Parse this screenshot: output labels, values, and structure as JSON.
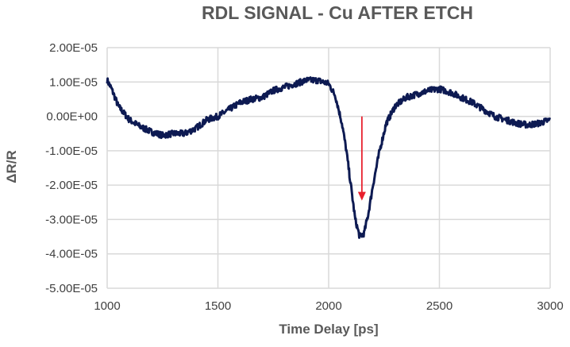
{
  "chart_data": {
    "type": "line",
    "title": "RDL SIGNAL - Cu AFTER ETCH",
    "xlabel": "Time Delay [ps]",
    "ylabel": "ΔR/R",
    "xlim": [
      1000,
      3000
    ],
    "ylim": [
      -5e-05,
      2e-05
    ],
    "xticks": [
      1000,
      1500,
      2000,
      2500,
      3000
    ],
    "xtick_labels": [
      "1000",
      "1500",
      "2000",
      "2500",
      "3000"
    ],
    "yticks": [
      2e-05,
      1e-05,
      0,
      -1e-05,
      -2e-05,
      -3e-05,
      -4e-05,
      -5e-05
    ],
    "ytick_labels": [
      "2.00E-05",
      "1.00E-05",
      "0.00E+00",
      "-1.00E-05",
      "-2.00E-05",
      "-3.00E-05",
      "-4.00E-05",
      "-5.00E-05"
    ],
    "grid": true,
    "legend": "none",
    "series": [
      {
        "name": "ΔR/R",
        "color": "#0d1a52",
        "x": [
          1000,
          1020,
          1050,
          1100,
          1150,
          1200,
          1250,
          1300,
          1350,
          1400,
          1450,
          1500,
          1550,
          1600,
          1650,
          1700,
          1750,
          1800,
          1850,
          1900,
          1950,
          2000,
          2030,
          2060,
          2080,
          2100,
          2120,
          2140,
          2160,
          2180,
          2200,
          2230,
          2260,
          2300,
          2350,
          2400,
          2450,
          2500,
          2550,
          2600,
          2650,
          2700,
          2750,
          2800,
          2850,
          2900,
          2950,
          3000
        ],
        "y": [
          1.05e-05,
          8e-06,
          3e-06,
          -1e-06,
          -3e-06,
          -4.5e-06,
          -5.5e-06,
          -5e-06,
          -5e-06,
          -3.5e-06,
          -1e-06,
          0.0,
          2e-06,
          4e-06,
          5e-06,
          5.5e-06,
          7.5e-06,
          8.5e-06,
          9.5e-06,
          1.05e-05,
          1.05e-05,
          9.5e-06,
          6e-06,
          -2e-06,
          -1e-05,
          -2e-05,
          -3e-05,
          -3.5e-05,
          -3.4e-05,
          -2.8e-05,
          -2e-05,
          -1e-05,
          -2e-06,
          3e-06,
          5.5e-06,
          6.5e-06,
          7.5e-06,
          8e-06,
          7e-06,
          5.5e-06,
          4e-06,
          2e-06,
          0.0,
          -1e-06,
          -2e-06,
          -2.5e-06,
          -2e-06,
          -1e-06
        ]
      }
    ],
    "annotations": [
      {
        "type": "arrow",
        "color": "#e8202e",
        "x": 2150,
        "y_start": 0.0,
        "y_end": -2.45e-05
      }
    ]
  }
}
